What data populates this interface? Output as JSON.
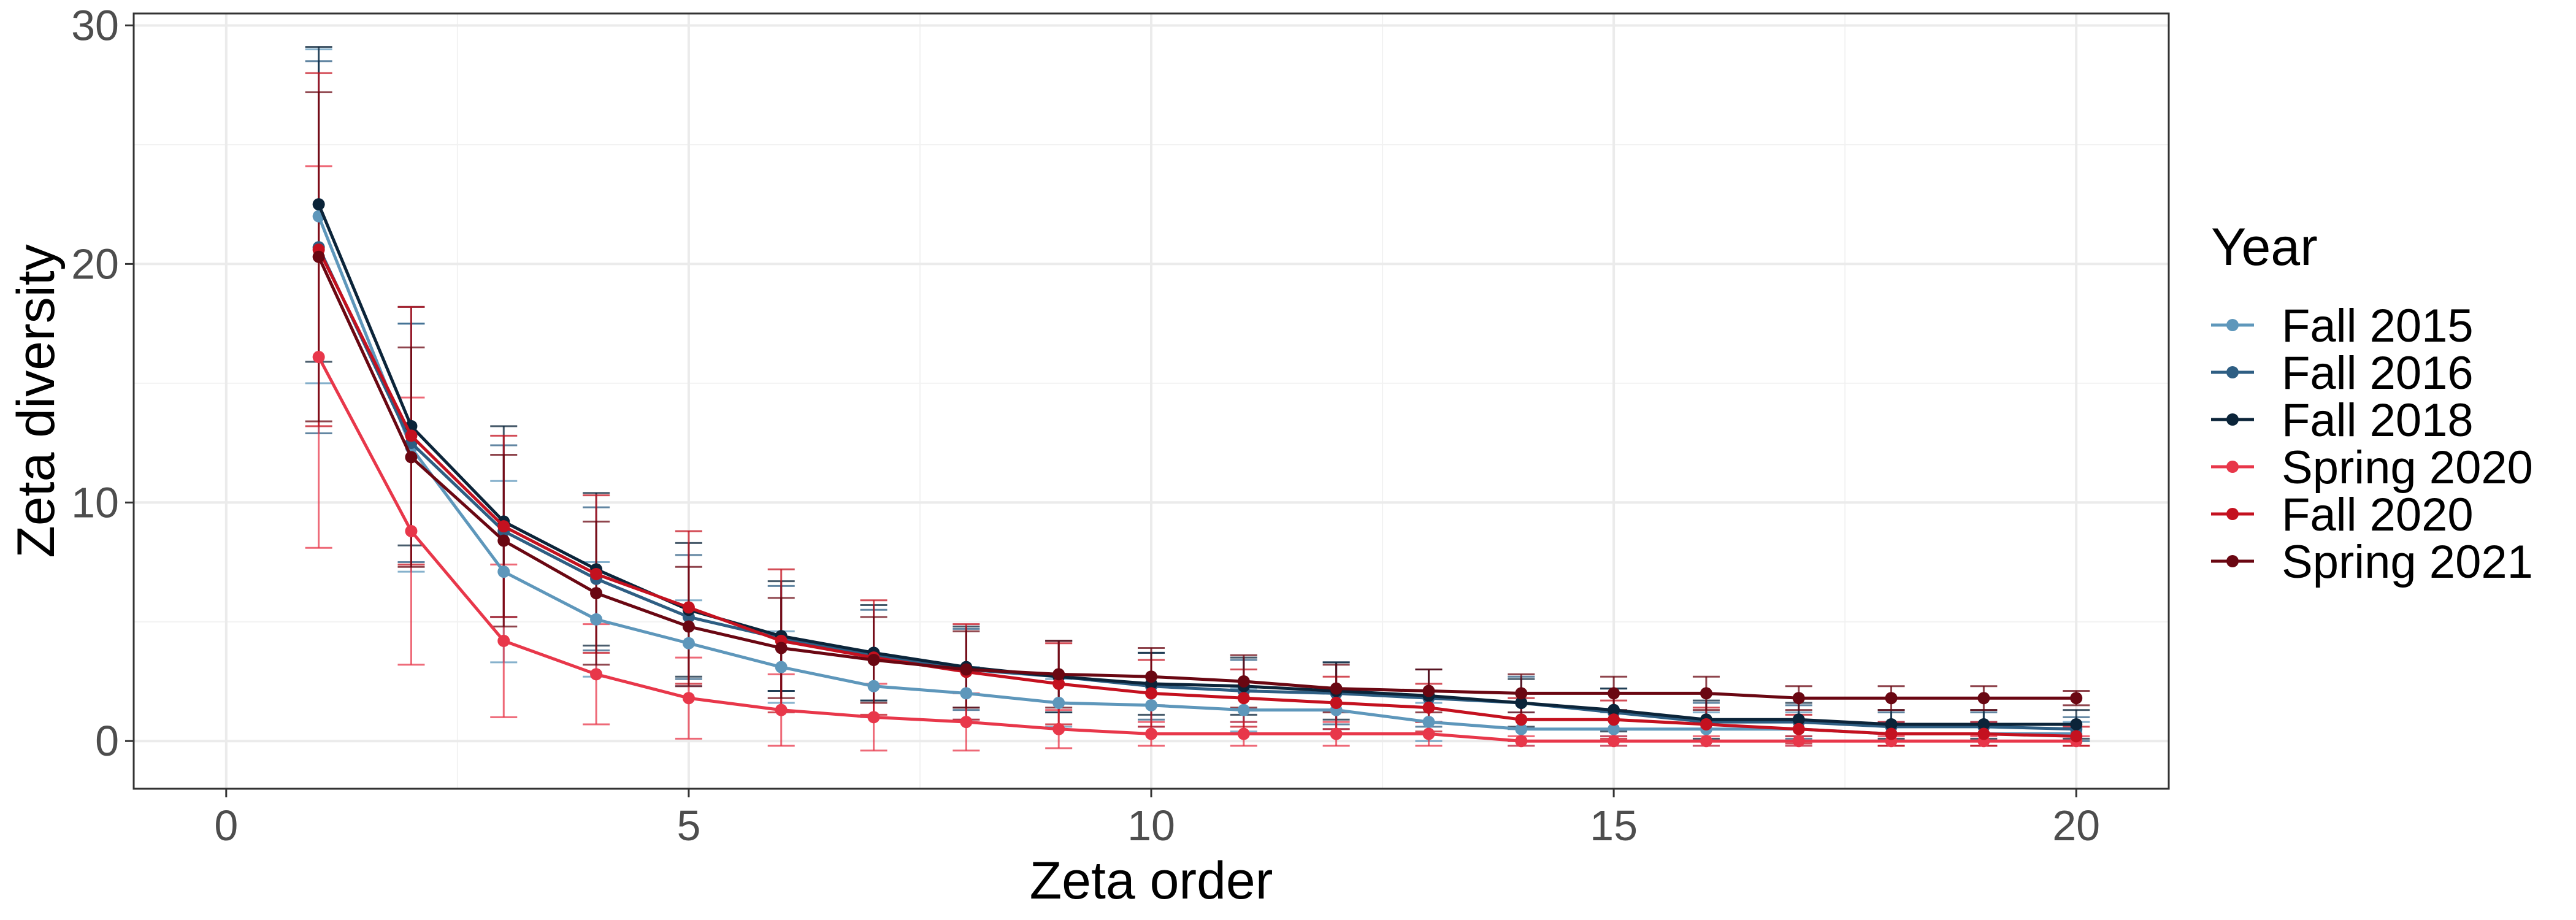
{
  "chart_data": {
    "type": "line",
    "title": "",
    "xlabel": "Zeta order",
    "ylabel": "Zeta diversity",
    "xlim": [
      -1,
      21
    ],
    "ylim": [
      -2,
      30.5
    ],
    "xticks": [
      0,
      5,
      10,
      15,
      20
    ],
    "yticks": [
      0,
      10,
      20,
      30
    ],
    "grid": true,
    "legend": {
      "title": "Year",
      "placement": "right"
    },
    "x": [
      1,
      2,
      3,
      4,
      5,
      6,
      7,
      8,
      9,
      10,
      11,
      12,
      13,
      14,
      15,
      16,
      17,
      18,
      19,
      20
    ],
    "series": [
      {
        "name": "Fall 2015",
        "color": "#5e97bb",
        "values": [
          22.0,
          12.3,
          7.1,
          5.1,
          4.1,
          3.1,
          2.3,
          2.0,
          1.6,
          1.5,
          1.3,
          1.3,
          0.8,
          0.5,
          0.5,
          0.5,
          0.5,
          0.3,
          0.3,
          0.3
        ],
        "error": [
          7.0,
          5.2,
          3.8,
          2.4,
          1.8,
          1.5,
          1.3,
          1.1,
          1.0,
          0.9,
          0.9,
          0.8,
          0.8,
          0.7,
          0.7,
          0.7,
          0.7,
          0.5,
          0.5,
          0.5
        ]
      },
      {
        "name": "Fall 2016",
        "color": "#2e5e83",
        "values": [
          20.7,
          12.5,
          8.8,
          6.8,
          5.2,
          4.3,
          3.6,
          3.0,
          2.7,
          2.3,
          2.1,
          2.0,
          1.8,
          1.6,
          1.2,
          0.8,
          0.8,
          0.6,
          0.6,
          0.5
        ],
        "error": [
          7.8,
          5.0,
          3.6,
          3.0,
          2.6,
          2.2,
          1.9,
          1.7,
          1.5,
          1.4,
          1.3,
          1.3,
          1.2,
          1.1,
          1.0,
          0.8,
          0.7,
          0.6,
          0.6,
          0.5
        ]
      },
      {
        "name": "Fall 2018",
        "color": "#0b2439",
        "values": [
          22.5,
          13.2,
          9.2,
          7.2,
          5.5,
          4.4,
          3.7,
          3.1,
          2.7,
          2.4,
          2.3,
          2.1,
          1.9,
          1.6,
          1.3,
          0.9,
          0.9,
          0.7,
          0.7,
          0.7
        ],
        "error": [
          6.6,
          5.0,
          4.0,
          3.2,
          2.8,
          2.3,
          2.0,
          1.7,
          1.5,
          1.3,
          1.2,
          1.2,
          1.1,
          1.0,
          0.9,
          0.8,
          0.7,
          0.6,
          0.6,
          0.6
        ]
      },
      {
        "name": "Spring 2020",
        "color": "#e8374a",
        "values": [
          16.1,
          8.8,
          4.2,
          2.8,
          1.8,
          1.3,
          1.0,
          0.8,
          0.5,
          0.3,
          0.3,
          0.3,
          0.3,
          0.0,
          0.0,
          0.0,
          0.0,
          0.0,
          0.0,
          0.0
        ],
        "error": [
          8.0,
          5.6,
          3.2,
          2.1,
          1.7,
          1.5,
          1.4,
          1.2,
          0.8,
          0.5,
          0.5,
          0.5,
          0.5,
          0.2,
          0.2,
          0.2,
          0.2,
          0.2,
          0.2,
          0.2
        ]
      },
      {
        "name": "Fall 2020",
        "color": "#c4111f",
        "values": [
          20.6,
          12.8,
          9.0,
          7.0,
          5.6,
          4.2,
          3.5,
          2.9,
          2.4,
          2.0,
          1.8,
          1.6,
          1.4,
          0.9,
          0.9,
          0.7,
          0.5,
          0.3,
          0.3,
          0.2
        ],
        "error": [
          7.4,
          5.4,
          3.8,
          3.3,
          3.2,
          3.0,
          2.4,
          2.0,
          1.7,
          1.4,
          1.2,
          1.1,
          1.0,
          0.9,
          0.8,
          0.7,
          0.6,
          0.5,
          0.5,
          0.4
        ]
      },
      {
        "name": "Spring 2021",
        "color": "#6a0712",
        "values": [
          20.3,
          11.9,
          8.4,
          6.2,
          4.8,
          3.9,
          3.4,
          3.0,
          2.8,
          2.7,
          2.5,
          2.2,
          2.1,
          2.0,
          2.0,
          2.0,
          1.8,
          1.8,
          1.8,
          1.8
        ],
        "error": [
          6.9,
          4.6,
          3.6,
          3.0,
          2.5,
          2.1,
          1.8,
          1.6,
          1.4,
          1.2,
          1.1,
          1.0,
          0.9,
          0.8,
          0.7,
          0.7,
          0.5,
          0.5,
          0.5,
          0.3
        ]
      }
    ]
  }
}
